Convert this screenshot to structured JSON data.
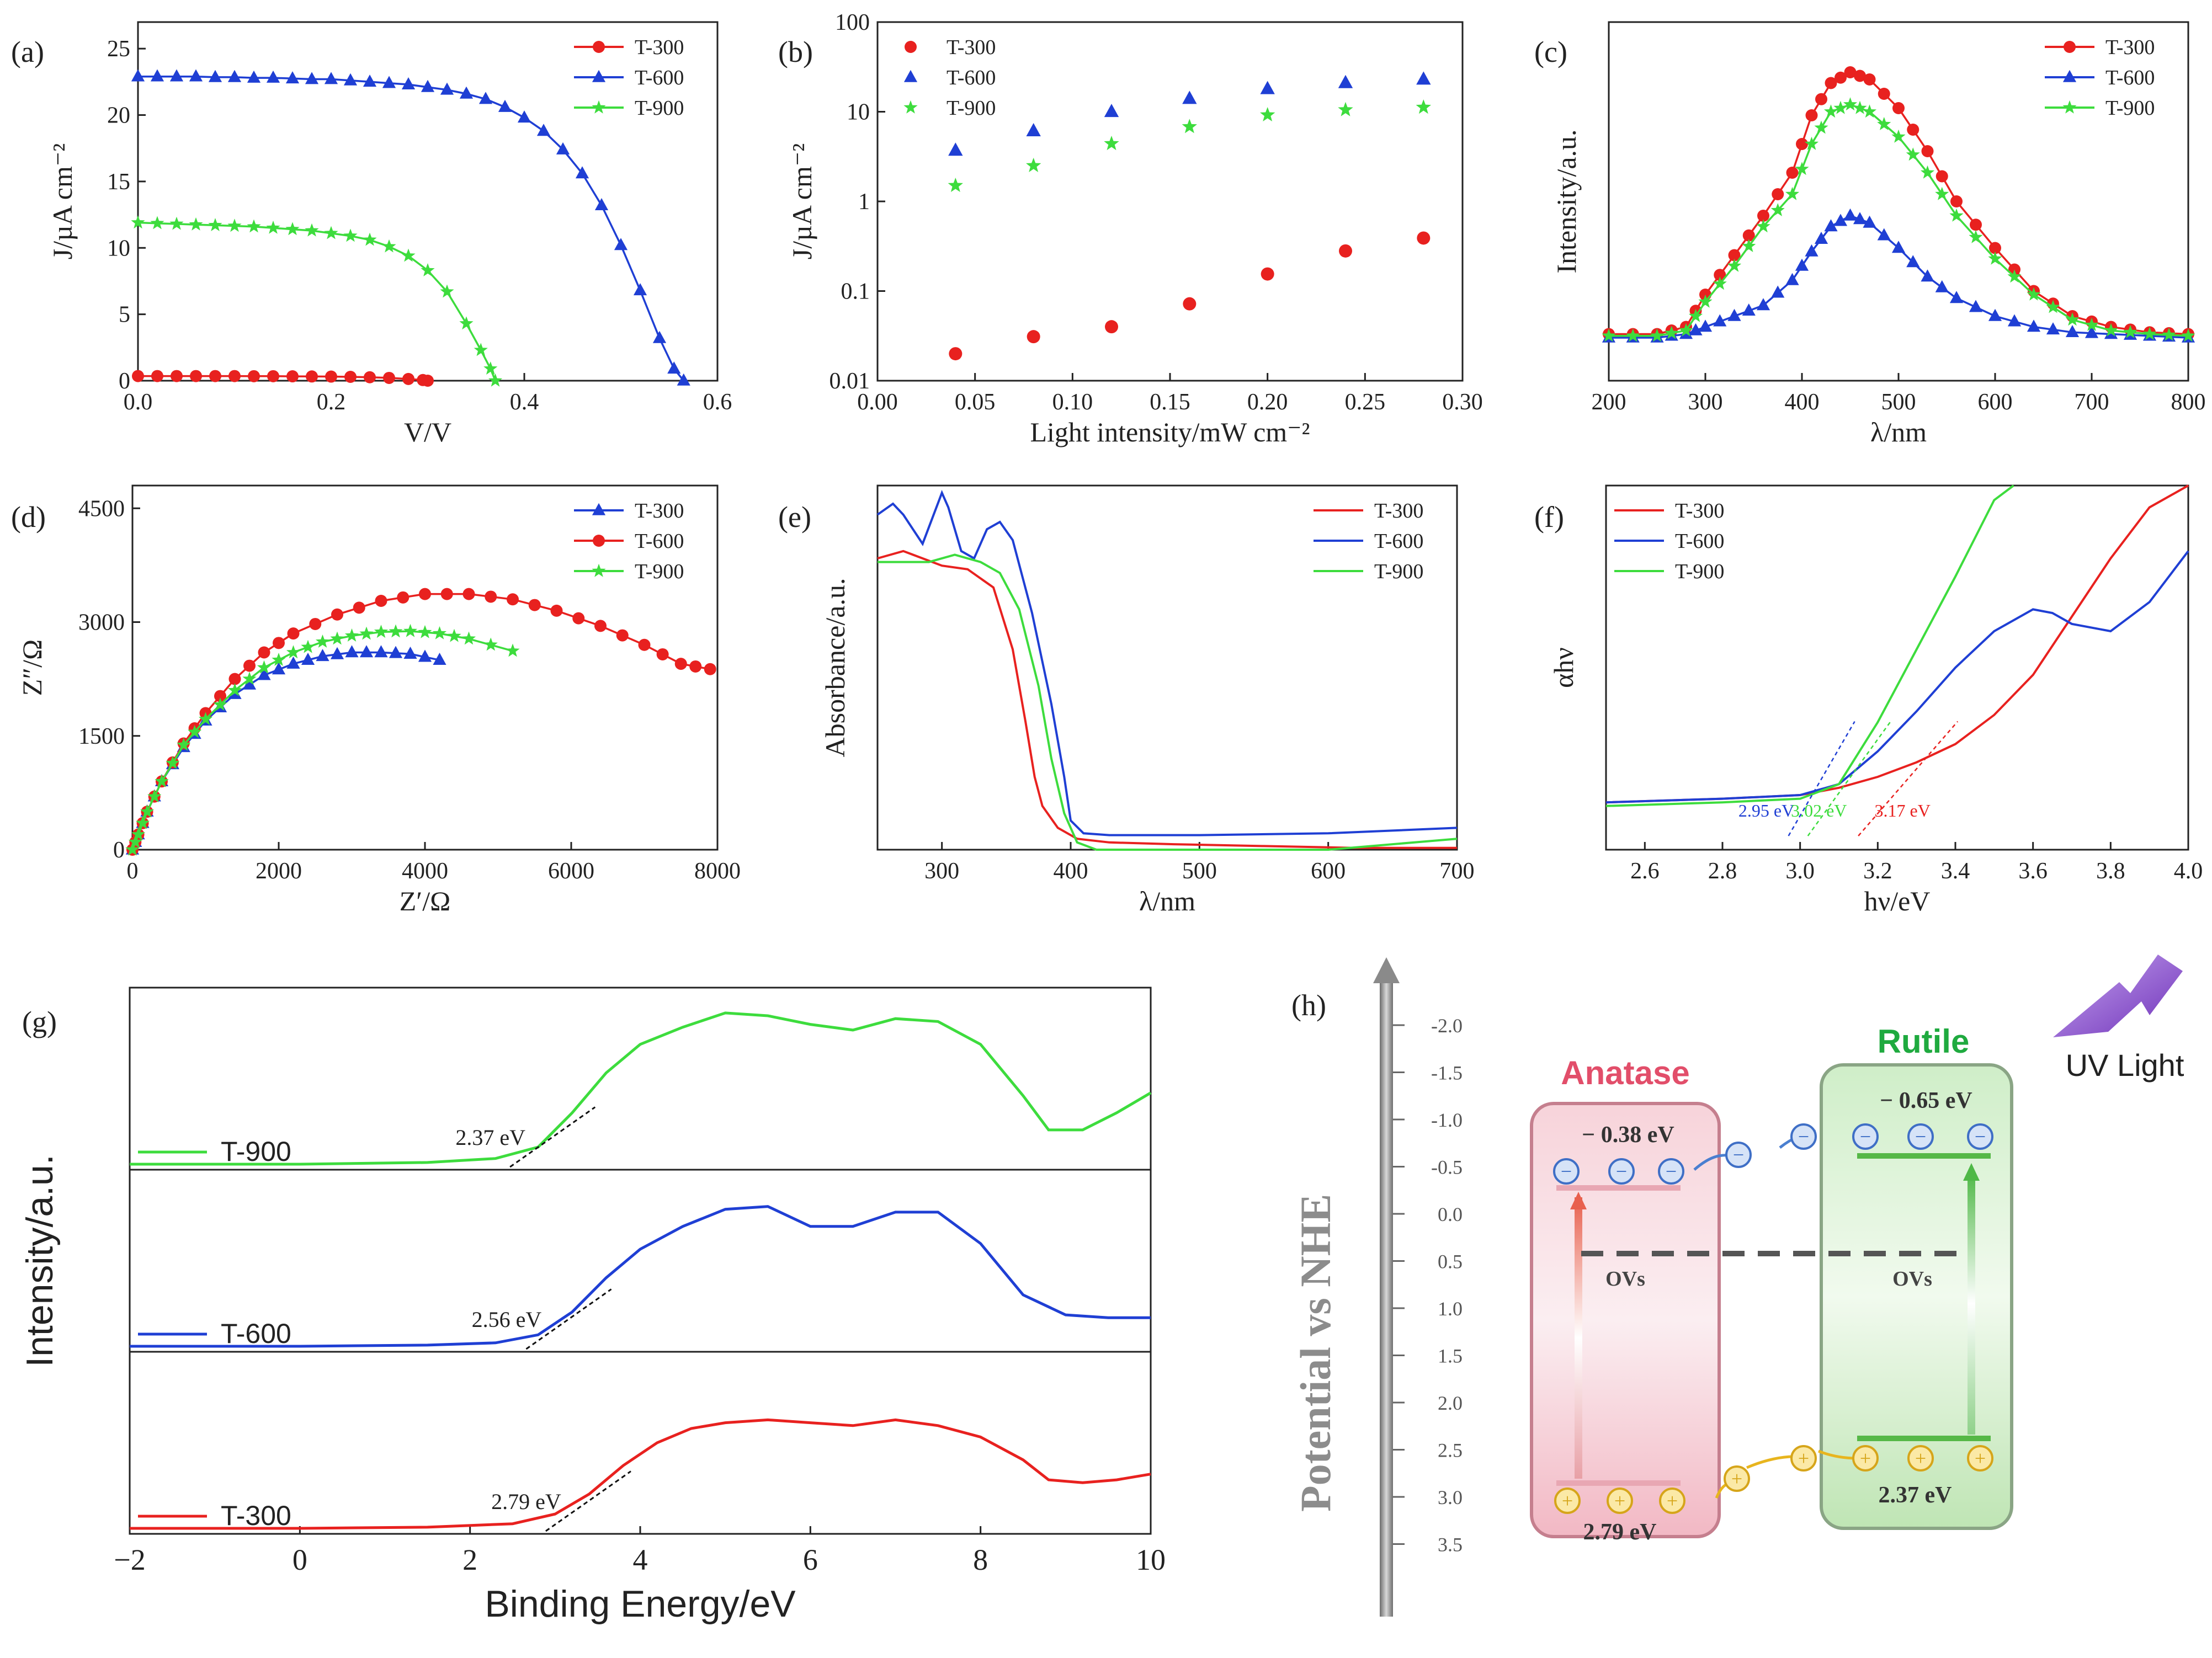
{
  "figure": {
    "panel_labels": [
      "(a)",
      "(b)",
      "(c)",
      "(d)",
      "(e)",
      "(f)",
      "(g)",
      "(h)"
    ]
  },
  "chart_data": [
    {
      "id": "a",
      "type": "line",
      "xlabel": "V/V",
      "ylabel": "J/µA cm⁻²",
      "xlim": [
        0,
        0.6
      ],
      "ylim": [
        0,
        27
      ],
      "xticks": [
        "0.0",
        "0.2",
        "0.4",
        "0.6"
      ],
      "yticks": [
        "0",
        "5",
        "10",
        "15",
        "20",
        "25"
      ],
      "series": [
        {
          "name": "T-300",
          "color": "#e8211f",
          "marker": "circle",
          "x": [
            0,
            0.02,
            0.04,
            0.06,
            0.08,
            0.1,
            0.12,
            0.14,
            0.16,
            0.18,
            0.2,
            0.22,
            0.24,
            0.26,
            0.28,
            0.295,
            0.3
          ],
          "y": [
            0.35,
            0.35,
            0.35,
            0.35,
            0.35,
            0.35,
            0.34,
            0.34,
            0.33,
            0.32,
            0.31,
            0.29,
            0.26,
            0.21,
            0.13,
            0.05,
            0
          ]
        },
        {
          "name": "T-600",
          "color": "#1f3fd4",
          "marker": "triangle",
          "x": [
            0,
            0.02,
            0.04,
            0.06,
            0.08,
            0.1,
            0.12,
            0.14,
            0.16,
            0.18,
            0.2,
            0.22,
            0.24,
            0.26,
            0.28,
            0.3,
            0.32,
            0.34,
            0.36,
            0.38,
            0.4,
            0.42,
            0.44,
            0.46,
            0.48,
            0.5,
            0.52,
            0.54,
            0.555,
            0.565
          ],
          "y": [
            22.9,
            22.9,
            22.9,
            22.9,
            22.85,
            22.85,
            22.8,
            22.8,
            22.75,
            22.7,
            22.7,
            22.6,
            22.5,
            22.4,
            22.3,
            22.1,
            21.9,
            21.6,
            21.2,
            20.6,
            19.8,
            18.8,
            17.4,
            15.6,
            13.2,
            10.2,
            6.8,
            3.2,
            0.9,
            0
          ]
        },
        {
          "name": "T-900",
          "color": "#3ddc3d",
          "marker": "star",
          "x": [
            0,
            0.02,
            0.04,
            0.06,
            0.08,
            0.1,
            0.12,
            0.14,
            0.16,
            0.18,
            0.2,
            0.22,
            0.24,
            0.26,
            0.28,
            0.3,
            0.32,
            0.34,
            0.355,
            0.365,
            0.37
          ],
          "y": [
            11.9,
            11.85,
            11.8,
            11.75,
            11.7,
            11.65,
            11.6,
            11.5,
            11.4,
            11.3,
            11.1,
            10.9,
            10.6,
            10.1,
            9.4,
            8.3,
            6.7,
            4.3,
            2.3,
            0.9,
            0
          ]
        }
      ]
    },
    {
      "id": "b",
      "type": "scatter",
      "xlabel": "Light intensity/mW cm⁻²",
      "ylabel": "J/µA cm⁻²",
      "xlim": [
        0,
        0.3
      ],
      "ylog": true,
      "ylim": [
        0.01,
        100
      ],
      "xticks": [
        "0.00",
        "0.05",
        "0.10",
        "0.15",
        "0.20",
        "0.25",
        "0.30"
      ],
      "yticks": [
        "0.01",
        "0.1",
        "1",
        "10",
        "100"
      ],
      "series": [
        {
          "name": "T-300",
          "color": "#e8211f",
          "marker": "circle",
          "x": [
            0.04,
            0.08,
            0.12,
            0.16,
            0.2,
            0.24,
            0.28
          ],
          "y": [
            0.02,
            0.031,
            0.04,
            0.072,
            0.155,
            0.28,
            0.39
          ]
        },
        {
          "name": "T-600",
          "color": "#1f3fd4",
          "marker": "triangle",
          "x": [
            0.04,
            0.08,
            0.12,
            0.16,
            0.2,
            0.24,
            0.28
          ],
          "y": [
            3.7,
            6.1,
            10,
            14,
            18,
            21,
            23
          ]
        },
        {
          "name": "T-900",
          "color": "#3ddc3d",
          "marker": "star",
          "x": [
            0.04,
            0.08,
            0.12,
            0.16,
            0.2,
            0.24,
            0.28
          ],
          "y": [
            1.5,
            2.5,
            4.4,
            6.8,
            9.2,
            10.5,
            11.2
          ]
        }
      ]
    },
    {
      "id": "c",
      "type": "line",
      "xlabel": "λ/nm",
      "ylabel": "Intensity/a.u.",
      "xlim": [
        200,
        800
      ],
      "ylim": [
        0,
        100
      ],
      "xticks": [
        "200",
        "300",
        "400",
        "500",
        "600",
        "700",
        "800"
      ],
      "series": [
        {
          "name": "T-300",
          "color": "#e8211f",
          "marker": "circle",
          "x": [
            200,
            250,
            280,
            300,
            330,
            360,
            390,
            410,
            430,
            450,
            470,
            500,
            530,
            560,
            600,
            640,
            680,
            720,
            760,
            800
          ],
          "y": [
            13,
            13,
            15,
            24,
            35,
            46,
            58,
            74,
            83,
            86,
            84,
            76,
            64,
            50,
            37,
            25,
            18,
            15,
            13.5,
            13
          ]
        },
        {
          "name": "T-600",
          "color": "#1f3fd4",
          "marker": "triangle",
          "x": [
            200,
            250,
            280,
            300,
            330,
            360,
            390,
            410,
            430,
            450,
            470,
            500,
            530,
            560,
            600,
            640,
            680,
            720,
            760,
            800
          ],
          "y": [
            12,
            12,
            13,
            15,
            18,
            21,
            28,
            36,
            43,
            46,
            44,
            37,
            29,
            23,
            18,
            15,
            13.5,
            13,
            12.5,
            12
          ]
        },
        {
          "name": "T-900",
          "color": "#3ddc3d",
          "marker": "star",
          "x": [
            200,
            250,
            280,
            300,
            330,
            360,
            390,
            410,
            430,
            450,
            470,
            500,
            530,
            560,
            600,
            640,
            680,
            720,
            760,
            800
          ],
          "y": [
            12.5,
            12.5,
            14,
            22,
            32,
            43,
            52,
            66,
            75,
            77,
            75,
            68,
            58,
            46,
            34,
            24,
            17,
            14,
            13,
            12.5
          ]
        }
      ]
    },
    {
      "id": "d",
      "type": "line",
      "xlabel": "Z′/Ω",
      "ylabel": "Z″/Ω",
      "xlim": [
        0,
        8000
      ],
      "ylim": [
        0,
        4800
      ],
      "xticks": [
        "0",
        "2000",
        "4000",
        "6000",
        "8000"
      ],
      "yticks": [
        "0",
        "1500",
        "3000",
        "4500"
      ],
      "series": [
        {
          "name": "T-300",
          "color": "#1f3fd4",
          "marker": "triangle",
          "x": [
            0,
            80,
            200,
            400,
            700,
            1000,
            1400,
            1800,
            2200,
            2600,
            3000,
            3400,
            3800,
            4200
          ],
          "y": [
            0,
            200,
            500,
            900,
            1350,
            1700,
            2050,
            2300,
            2450,
            2550,
            2600,
            2600,
            2580,
            2500
          ]
        },
        {
          "name": "T-600",
          "color": "#e8211f",
          "marker": "circle",
          "x": [
            0,
            80,
            200,
            400,
            700,
            1000,
            1400,
            1800,
            2200,
            2800,
            3400,
            4000,
            4600,
            5200,
            5800,
            6400,
            7000,
            7500,
            7900
          ],
          "y": [
            0,
            200,
            500,
            900,
            1400,
            1800,
            2250,
            2600,
            2850,
            3100,
            3280,
            3370,
            3370,
            3300,
            3150,
            2950,
            2700,
            2450,
            2380
          ]
        },
        {
          "name": "T-900",
          "color": "#3ddc3d",
          "marker": "star",
          "x": [
            0,
            80,
            200,
            400,
            700,
            1000,
            1400,
            1800,
            2200,
            2600,
            3000,
            3400,
            3800,
            4200,
            4600,
            5200
          ],
          "y": [
            0,
            200,
            500,
            900,
            1380,
            1720,
            2100,
            2400,
            2600,
            2740,
            2820,
            2870,
            2880,
            2850,
            2780,
            2620
          ]
        }
      ]
    },
    {
      "id": "e",
      "type": "line",
      "xlabel": "λ/nm",
      "ylabel": "Absorbance/a.u.",
      "xlim": [
        250,
        700
      ],
      "ylim": [
        0,
        100
      ],
      "xticks": [
        "300",
        "400",
        "500",
        "600",
        "700"
      ],
      "series": [
        {
          "name": "T-300",
          "color": "#e8211f",
          "x": [
            250,
            270,
            285,
            300,
            320,
            340,
            355,
            365,
            372,
            378,
            390,
            405,
            430,
            480,
            550,
            620,
            700
          ],
          "y": [
            80,
            82,
            80,
            78,
            77,
            72,
            55,
            35,
            20,
            12,
            6,
            3,
            2,
            1.5,
            1,
            0.5,
            0.5
          ]
        },
        {
          "name": "T-600",
          "color": "#1f3fd4",
          "x": [
            250,
            262,
            270,
            285,
            300,
            305,
            315,
            325,
            335,
            345,
            355,
            370,
            385,
            395,
            400,
            410,
            430,
            500,
            600,
            700
          ],
          "y": [
            92,
            95,
            92,
            84,
            98,
            94,
            82,
            80,
            88,
            90,
            85,
            65,
            40,
            20,
            8,
            4.5,
            4,
            4,
            4.5,
            6
          ]
        },
        {
          "name": "T-900",
          "color": "#3ddc3d",
          "x": [
            250,
            270,
            290,
            310,
            330,
            345,
            360,
            375,
            385,
            395,
            405,
            420,
            450,
            500,
            600,
            700
          ],
          "y": [
            79,
            79,
            79,
            81,
            79,
            76,
            66,
            45,
            25,
            10,
            2,
            0,
            0,
            0,
            0,
            3
          ]
        }
      ]
    },
    {
      "id": "f",
      "type": "line",
      "xlabel": "hν/eV",
      "ylabel": "αhν",
      "xlim": [
        2.5,
        4.0
      ],
      "ylim": [
        0,
        100
      ],
      "xticks": [
        "2.6",
        "2.8",
        "3.0",
        "3.2",
        "3.4",
        "3.6",
        "3.8",
        "4.0"
      ],
      "annotations": [
        {
          "text": "2.95 eV",
          "x": 2.97,
          "color": "#1f3fd4"
        },
        {
          "text": "3.02 eV",
          "x": 3.02,
          "color": "#3ddc3d"
        },
        {
          "text": "3.17 eV",
          "x": 3.15,
          "color": "#e8211f"
        }
      ],
      "series": [
        {
          "name": "T-300",
          "color": "#e8211f",
          "x": [
            2.5,
            2.8,
            3.0,
            3.1,
            3.2,
            3.3,
            3.4,
            3.5,
            3.6,
            3.7,
            3.8,
            3.9,
            4.0
          ],
          "y": [
            13,
            14,
            15,
            17,
            20,
            24,
            29,
            37,
            48,
            64,
            80,
            94,
            100
          ]
        },
        {
          "name": "T-600",
          "color": "#1f3fd4",
          "x": [
            2.5,
            2.8,
            3.0,
            3.1,
            3.2,
            3.3,
            3.4,
            3.5,
            3.6,
            3.65,
            3.7,
            3.8,
            3.9,
            4.0
          ],
          "y": [
            13,
            14,
            15,
            18,
            27,
            38,
            50,
            60,
            66,
            65,
            62,
            60,
            68,
            82
          ]
        },
        {
          "name": "T-900",
          "color": "#3ddc3d",
          "x": [
            2.5,
            2.8,
            3.0,
            3.1,
            3.2,
            3.3,
            3.4,
            3.5,
            3.55
          ],
          "y": [
            12,
            13,
            14,
            18,
            35,
            55,
            75,
            96,
            102
          ]
        }
      ]
    },
    {
      "id": "g",
      "type": "line",
      "xlabel": "Binding Energy/eV",
      "ylabel": "Intensity/a.u.",
      "xlim": [
        -2,
        10
      ],
      "xticks": [
        "−2",
        "0",
        "2",
        "4",
        "6",
        "8",
        "10"
      ],
      "series": [
        {
          "name": "T-900",
          "color": "#3ddc3d",
          "annotation": "2.37 eV",
          "x": [
            -2,
            0,
            1.5,
            2.3,
            2.8,
            3.2,
            3.6,
            4.0,
            4.5,
            5.0,
            5.5,
            6.0,
            6.5,
            7.0,
            7.5,
            8.0,
            8.5,
            8.8,
            9.2,
            9.6,
            10
          ],
          "y": [
            0,
            0,
            0.03,
            0.1,
            0.3,
            0.9,
            1.6,
            2.1,
            2.4,
            2.65,
            2.6,
            2.45,
            2.35,
            2.55,
            2.5,
            2.1,
            1.2,
            0.6,
            0.6,
            0.9,
            1.25
          ]
        },
        {
          "name": "T-600",
          "color": "#1f3fd4",
          "annotation": "2.56 eV",
          "x": [
            -2,
            0,
            1.5,
            2.3,
            2.8,
            3.2,
            3.6,
            4.0,
            4.5,
            5.0,
            5.5,
            6.0,
            6.5,
            7.0,
            7.5,
            8.0,
            8.5,
            9.0,
            9.5,
            10
          ],
          "y": [
            0,
            0,
            0.02,
            0.06,
            0.2,
            0.6,
            1.2,
            1.7,
            2.1,
            2.4,
            2.45,
            2.1,
            2.1,
            2.35,
            2.35,
            1.8,
            0.9,
            0.55,
            0.5,
            0.5
          ]
        },
        {
          "name": "T-300",
          "color": "#e8211f",
          "annotation": "2.79 eV",
          "x": [
            -2,
            0,
            1.5,
            2.5,
            3.0,
            3.4,
            3.8,
            4.2,
            4.6,
            5.0,
            5.5,
            6.0,
            6.5,
            7.0,
            7.5,
            8.0,
            8.5,
            8.8,
            9.2,
            9.6,
            10
          ],
          "y": [
            0,
            0,
            0.02,
            0.08,
            0.25,
            0.6,
            1.1,
            1.5,
            1.75,
            1.85,
            1.9,
            1.85,
            1.8,
            1.9,
            1.8,
            1.6,
            1.2,
            0.85,
            0.8,
            0.85,
            0.95
          ]
        }
      ]
    }
  ],
  "scheme_h": {
    "axis_label": "Potential vs NHE",
    "ticks": [
      "-2.0",
      "-1.5",
      "-1.0",
      "-0.5",
      "0.0",
      "0.5",
      "1.0",
      "1.5",
      "2.0",
      "2.5",
      "3.0",
      "3.5"
    ],
    "anatase": {
      "title": "Anatase",
      "cb": "− 0.38 eV",
      "vb": "2.79 eV",
      "defect": "OVs",
      "color": "#e24e6a"
    },
    "rutile": {
      "title": "Rutile",
      "cb": "− 0.65 eV",
      "vb": "2.37 eV",
      "defect": "OVs",
      "color": "#1faa3f"
    },
    "light": "UV Light",
    "electron": "−",
    "hole": "+"
  },
  "legend_names": [
    "T-300",
    "T-600",
    "T-900"
  ]
}
